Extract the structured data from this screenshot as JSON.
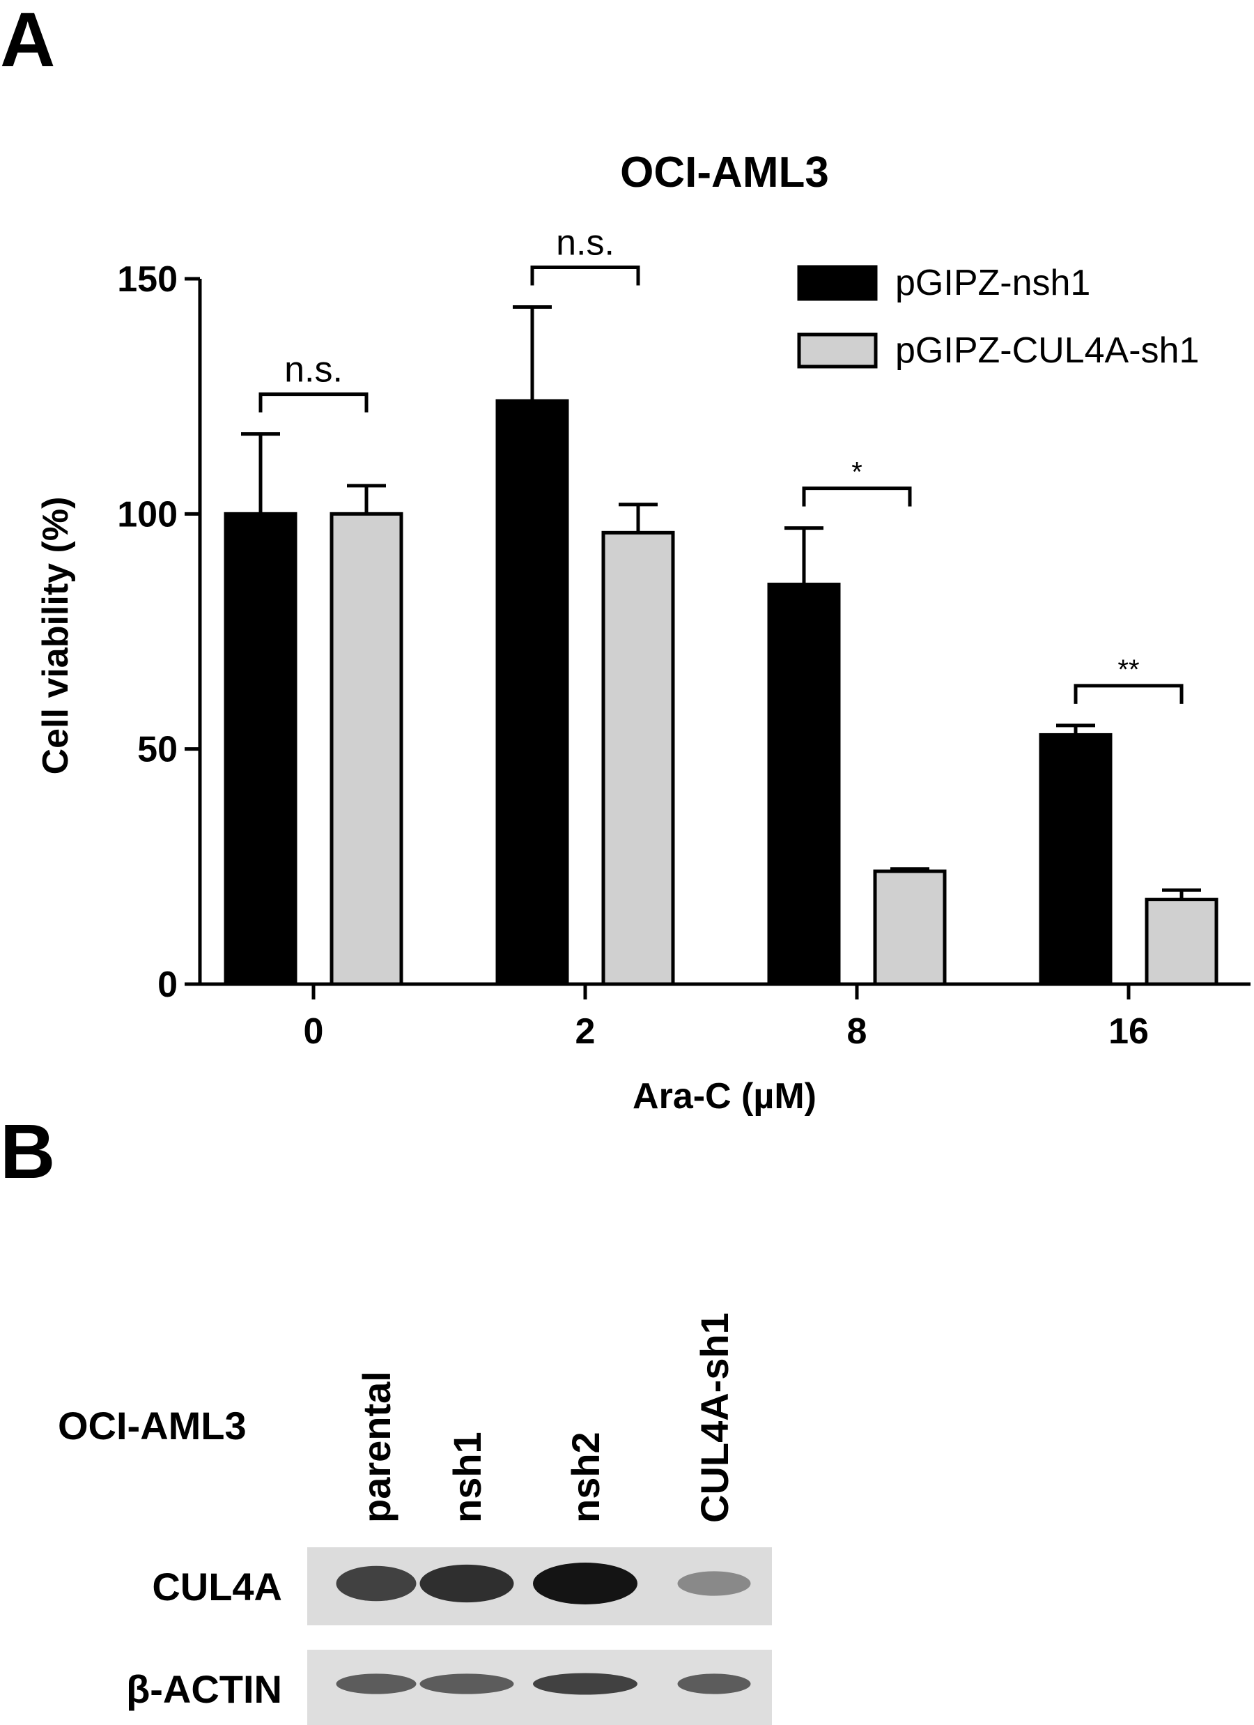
{
  "panels": {
    "a_label": "A",
    "b_label": "B"
  },
  "chart_data": {
    "type": "bar",
    "title": "OCI-AML3",
    "xlabel": "Ara-C (µM)",
    "ylabel": "Cell viability (%)",
    "categories": [
      "0",
      "2",
      "8",
      "16"
    ],
    "ylim": [
      0,
      150
    ],
    "yticks": [
      0,
      50,
      100,
      150
    ],
    "legend_position": "top-right",
    "series": [
      {
        "name": "pGIPZ-nsh1",
        "color": "#000000",
        "values": [
          100,
          124,
          85,
          53
        ],
        "errors": [
          17,
          20,
          12,
          2
        ]
      },
      {
        "name": "pGIPZ-CUL4A-sh1",
        "color": "#d0d0d0",
        "values": [
          100,
          96,
          24,
          18
        ],
        "errors": [
          6,
          6,
          0.5,
          2
        ]
      }
    ],
    "annotations": [
      "n.s.",
      "n.s.",
      "*",
      "**"
    ]
  },
  "blot": {
    "cell_line": "OCI-AML3",
    "lanes": [
      "parental",
      "nsh1",
      "nsh2",
      "CUL4A-sh1"
    ],
    "rows": [
      {
        "label": "CUL4A",
        "intensity": [
          0.75,
          0.85,
          1.0,
          0.35
        ]
      },
      {
        "label": "β-ACTIN",
        "intensity": [
          0.6,
          0.6,
          0.75,
          0.6
        ]
      }
    ]
  }
}
